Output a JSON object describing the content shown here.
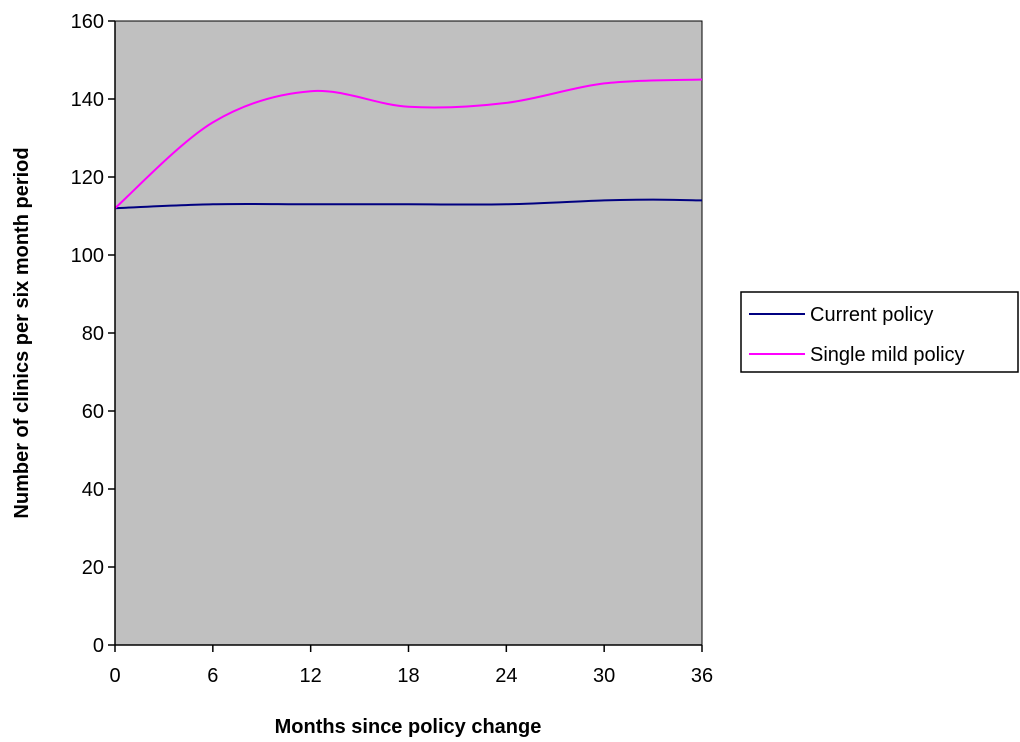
{
  "chart_data": {
    "type": "line",
    "xlabel": "Months since policy change",
    "ylabel": "Number of clinics per six month period",
    "xlim": [
      0,
      36
    ],
    "ylim": [
      0,
      160
    ],
    "x_ticks": [
      0,
      6,
      12,
      18,
      24,
      30,
      36
    ],
    "y_ticks": [
      0,
      20,
      40,
      60,
      80,
      100,
      120,
      140,
      160
    ],
    "grid": false,
    "plot_background": "#c0c0c0",
    "legend_position": "right",
    "series": [
      {
        "name": "Current policy",
        "color": "#000080",
        "x": [
          0,
          6,
          12,
          18,
          24,
          30,
          33,
          36
        ],
        "y": [
          112,
          113,
          113,
          113,
          113,
          114,
          114.2,
          114
        ]
      },
      {
        "name": "Single mild policy",
        "color": "#ff00ff",
        "x": [
          0,
          6,
          12,
          18,
          24,
          30,
          36
        ],
        "y": [
          112,
          134,
          142,
          138,
          139,
          144,
          145
        ]
      }
    ]
  }
}
